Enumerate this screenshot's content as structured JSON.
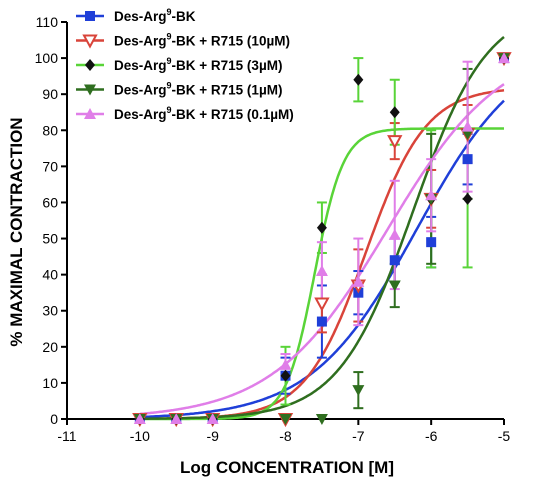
{
  "chart_data": {
    "type": "scatter",
    "title": "",
    "xlabel": "Log CONCENTRATION [M]",
    "ylabel": "% MAXIMAL CONTRACTION",
    "xlim": [
      -11,
      -5
    ],
    "ylim": [
      0,
      110
    ],
    "xticks": [
      "-11",
      "-10",
      "-9",
      "-8",
      "-7",
      "-6",
      "-5"
    ],
    "yticks": [
      "0",
      "10",
      "20",
      "30",
      "40",
      "50",
      "60",
      "70",
      "80",
      "90",
      "100",
      "110"
    ],
    "legend_position": "top-left",
    "grid": false,
    "series": [
      {
        "legend_prefix": "Des-Arg",
        "legend_sup": "9",
        "legend_suffix": "-BK",
        "color": "#1f3fd8",
        "marker": "square",
        "x": [
          -10,
          -9.5,
          -9,
          -8,
          -7.5,
          -7,
          -6.5,
          -6,
          -5.5,
          -5
        ],
        "y": [
          0,
          0,
          0,
          12,
          27,
          35,
          44,
          49,
          72,
          100
        ],
        "err": [
          0,
          0,
          0,
          5,
          10,
          6,
          6,
          7,
          7,
          0
        ],
        "fit": {
          "bottom": 0,
          "top": 105,
          "logec50": -6.2,
          "hill": 0.6
        }
      },
      {
        "legend_prefix": "Des-Arg",
        "legend_sup": "9",
        "legend_suffix": "-BK + R715 (10µM)",
        "color": "#d9443a",
        "marker": "triangle-down-open",
        "x": [
          -10,
          -9.5,
          -9,
          -8,
          -7.5,
          -7,
          -6.5,
          -6,
          -5.5,
          -5
        ],
        "y": [
          0,
          0,
          0,
          0,
          32,
          37,
          77,
          61,
          79,
          100
        ],
        "err": [
          0,
          0,
          0,
          0,
          8,
          10,
          5,
          8,
          8,
          0
        ],
        "fit": {
          "bottom": 0,
          "top": 92,
          "logec50": -6.9,
          "hill": 1.05
        }
      },
      {
        "legend_prefix": "Des-Arg",
        "legend_sup": "9",
        "legend_suffix": "-BK + R715 (3µM)",
        "color": "#59d438",
        "marker": "diamond",
        "x": [
          -10,
          -9.5,
          -9,
          -8,
          -7.5,
          -7,
          -6.5,
          -6,
          -5.5,
          -5
        ],
        "y": [
          0,
          0,
          0,
          12,
          53,
          94,
          85,
          61,
          61,
          100
        ],
        "err": [
          0,
          0,
          0,
          8,
          7,
          6,
          9,
          19,
          19,
          0
        ],
        "fit": {
          "bottom": 0,
          "top": 80.5,
          "logec50": -7.6,
          "hill": 2.2
        }
      },
      {
        "legend_prefix": "Des-Arg",
        "legend_sup": "9",
        "legend_suffix": "-BK + R715 (1µM)",
        "color": "#2f6e1f",
        "marker": "triangle-down",
        "x": [
          -10,
          -9.5,
          -9,
          -8,
          -7.5,
          -7,
          -6.5,
          -6,
          -5.5,
          -5
        ],
        "y": [
          0,
          0,
          0,
          0,
          0,
          8,
          37,
          61,
          79,
          100
        ],
        "err": [
          0,
          0,
          0,
          0,
          0,
          5,
          6,
          18,
          18,
          0
        ],
        "fit": {
          "bottom": 0,
          "top": 115,
          "logec50": -6.25,
          "hill": 0.85
        }
      },
      {
        "legend_prefix": "Des-Arg",
        "legend_sup": "9",
        "legend_suffix": "-BK + R715 (0.1µM)",
        "color": "#e07ee8",
        "marker": "triangle-up",
        "x": [
          -10,
          -9.5,
          -9,
          -8,
          -7.5,
          -7,
          -6.5,
          -6,
          -5.5,
          -5
        ],
        "y": [
          0,
          0,
          0,
          15,
          41,
          38,
          51,
          62,
          81,
          100
        ],
        "err": [
          0,
          0,
          0,
          3,
          8,
          12,
          15,
          10,
          18,
          0
        ],
        "fit": {
          "bottom": 0,
          "top": 105,
          "logec50": -6.6,
          "hill": 0.55
        }
      }
    ]
  }
}
